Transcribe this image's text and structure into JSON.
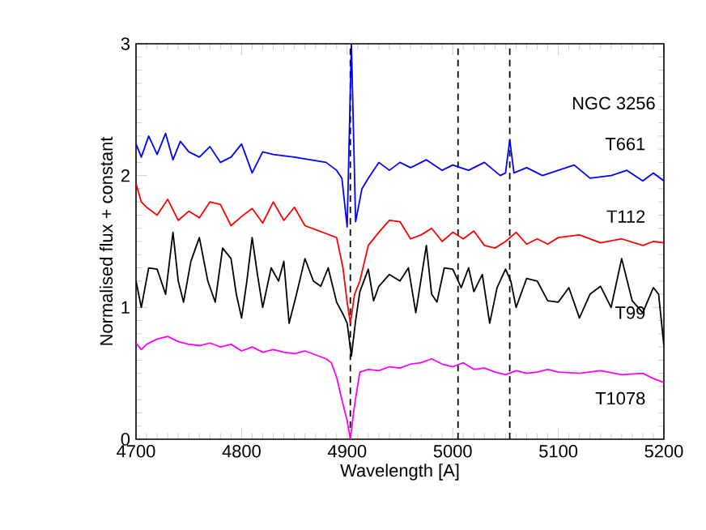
{
  "chart_data": {
    "type": "line",
    "xlabel": "Wavelength [A]",
    "ylabel": "Normalised flux + constant",
    "xlim": [
      4700,
      5200
    ],
    "ylim": [
      0,
      3
    ],
    "xticks": [
      4700,
      4800,
      4900,
      5000,
      5100,
      5200
    ],
    "yticks": [
      0,
      1,
      2,
      3
    ],
    "grid": false,
    "legend": false,
    "marker": "none",
    "line_style": "solid",
    "annotations": [
      "NGC 3256"
    ],
    "ref_lines": [
      {
        "axis": "x",
        "value": 4903,
        "color": "#000000",
        "line_style": "dashed"
      },
      {
        "axis": "x",
        "value": 5005,
        "color": "#000000",
        "line_style": "dashed"
      },
      {
        "axis": "x",
        "value": 5054,
        "color": "#000000",
        "line_style": "dashed"
      }
    ],
    "series": [
      {
        "name": "T661",
        "color": "#0000ff",
        "x": [
          4700,
          4705,
          4712,
          4720,
          4728,
          4735,
          4742,
          4750,
          4760,
          4770,
          4780,
          4790,
          4800,
          4810,
          4820,
          4830,
          4850,
          4865,
          4880,
          4890,
          4895,
          4900,
          4904,
          4908,
          4914,
          4920,
          4930,
          4940,
          4950,
          4960,
          4975,
          4990,
          5000,
          5015,
          5030,
          5045,
          5050,
          5054,
          5058,
          5070,
          5085,
          5100,
          5115,
          5130,
          5150,
          5165,
          5180,
          5190,
          5200
        ],
        "values": [
          2.24,
          2.14,
          2.3,
          2.16,
          2.32,
          2.12,
          2.26,
          2.18,
          2.14,
          2.22,
          2.1,
          2.14,
          2.24,
          2.02,
          2.18,
          2.16,
          2.14,
          2.12,
          2.1,
          2.04,
          1.98,
          1.61,
          3.0,
          1.65,
          1.9,
          1.98,
          2.1,
          2.04,
          2.1,
          2.06,
          2.12,
          2.04,
          2.08,
          2.04,
          2.1,
          2.0,
          2.02,
          2.27,
          2.02,
          2.06,
          2.0,
          2.04,
          2.08,
          1.98,
          2.0,
          2.04,
          1.96,
          2.02,
          1.96
        ]
      },
      {
        "name": "T112",
        "color": "#ff0000",
        "x": [
          4700,
          4705,
          4710,
          4720,
          4730,
          4740,
          4750,
          4760,
          4770,
          4780,
          4790,
          4800,
          4810,
          4820,
          4830,
          4840,
          4850,
          4860,
          4870,
          4880,
          4890,
          4896,
          4900,
          4903,
          4907,
          4912,
          4920,
          4930,
          4940,
          4950,
          4960,
          4970,
          4980,
          4990,
          5000,
          5010,
          5020,
          5030,
          5040,
          5050,
          5060,
          5070,
          5080,
          5090,
          5100,
          5120,
          5140,
          5160,
          5180,
          5190,
          5200
        ],
        "values": [
          1.94,
          1.8,
          1.76,
          1.7,
          1.82,
          1.66,
          1.73,
          1.68,
          1.8,
          1.78,
          1.62,
          1.69,
          1.75,
          1.64,
          1.8,
          1.66,
          1.76,
          1.62,
          1.59,
          1.56,
          1.53,
          1.3,
          1.04,
          0.88,
          1.1,
          1.2,
          1.47,
          1.57,
          1.66,
          1.65,
          1.52,
          1.55,
          1.6,
          1.5,
          1.57,
          1.52,
          1.58,
          1.47,
          1.45,
          1.5,
          1.57,
          1.48,
          1.52,
          1.48,
          1.53,
          1.55,
          1.49,
          1.52,
          1.47,
          1.5,
          1.49
        ]
      },
      {
        "name": "T99",
        "color": "#000000",
        "x": [
          4700,
          4705,
          4712,
          4720,
          4728,
          4735,
          4740,
          4745,
          4752,
          4760,
          4768,
          4775,
          4782,
          4790,
          4795,
          4800,
          4805,
          4810,
          4815,
          4820,
          4828,
          4835,
          4840,
          4845,
          4852,
          4860,
          4868,
          4875,
          4882,
          4890,
          4896,
          4900,
          4904,
          4908,
          4912,
          4920,
          4925,
          4930,
          4940,
          4950,
          4958,
          4965,
          4975,
          4980,
          4985,
          4992,
          5000,
          5008,
          5015,
          5020,
          5028,
          5035,
          5042,
          5050,
          5055,
          5060,
          5070,
          5080,
          5090,
          5100,
          5110,
          5120,
          5130,
          5140,
          5150,
          5160,
          5170,
          5180,
          5190,
          5195,
          5200
        ],
        "values": [
          1.2,
          1.0,
          1.3,
          1.29,
          1.1,
          1.57,
          1.2,
          1.04,
          1.35,
          1.53,
          1.2,
          1.04,
          1.45,
          1.37,
          1.1,
          0.92,
          1.2,
          1.53,
          1.25,
          1.0,
          1.3,
          1.2,
          1.35,
          0.88,
          1.1,
          1.37,
          1.2,
          1.16,
          1.3,
          1.04,
          0.95,
          0.88,
          0.63,
          0.9,
          1.12,
          1.29,
          1.05,
          1.16,
          1.25,
          1.2,
          1.3,
          0.96,
          1.47,
          1.1,
          1.04,
          1.3,
          1.29,
          1.15,
          1.3,
          1.12,
          1.25,
          0.88,
          1.15,
          1.29,
          1.2,
          1.0,
          1.22,
          1.2,
          1.05,
          1.04,
          1.15,
          0.92,
          1.1,
          1.16,
          1.0,
          1.37,
          1.05,
          0.96,
          1.15,
          1.1,
          0.71
        ]
      },
      {
        "name": "T1078",
        "color": "#ff00ff",
        "x": [
          4700,
          4705,
          4710,
          4720,
          4730,
          4740,
          4750,
          4760,
          4770,
          4780,
          4790,
          4800,
          4810,
          4820,
          4830,
          4840,
          4850,
          4860,
          4870,
          4880,
          4885,
          4890,
          4895,
          4900,
          4903,
          4906,
          4908,
          4912,
          4920,
          4930,
          4940,
          4950,
          4960,
          4970,
          4980,
          4990,
          5000,
          5010,
          5020,
          5030,
          5040,
          5050,
          5060,
          5070,
          5080,
          5090,
          5100,
          5120,
          5140,
          5160,
          5180,
          5190,
          5200
        ],
        "values": [
          0.73,
          0.68,
          0.72,
          0.76,
          0.78,
          0.74,
          0.72,
          0.71,
          0.73,
          0.7,
          0.72,
          0.67,
          0.7,
          0.66,
          0.68,
          0.66,
          0.65,
          0.67,
          0.64,
          0.61,
          0.58,
          0.47,
          0.3,
          0.14,
          0.0,
          0.2,
          0.31,
          0.51,
          0.53,
          0.52,
          0.55,
          0.54,
          0.57,
          0.58,
          0.61,
          0.57,
          0.55,
          0.58,
          0.53,
          0.54,
          0.51,
          0.49,
          0.52,
          0.5,
          0.51,
          0.53,
          0.51,
          0.5,
          0.52,
          0.49,
          0.5,
          0.46,
          0.43
        ]
      }
    ]
  }
}
